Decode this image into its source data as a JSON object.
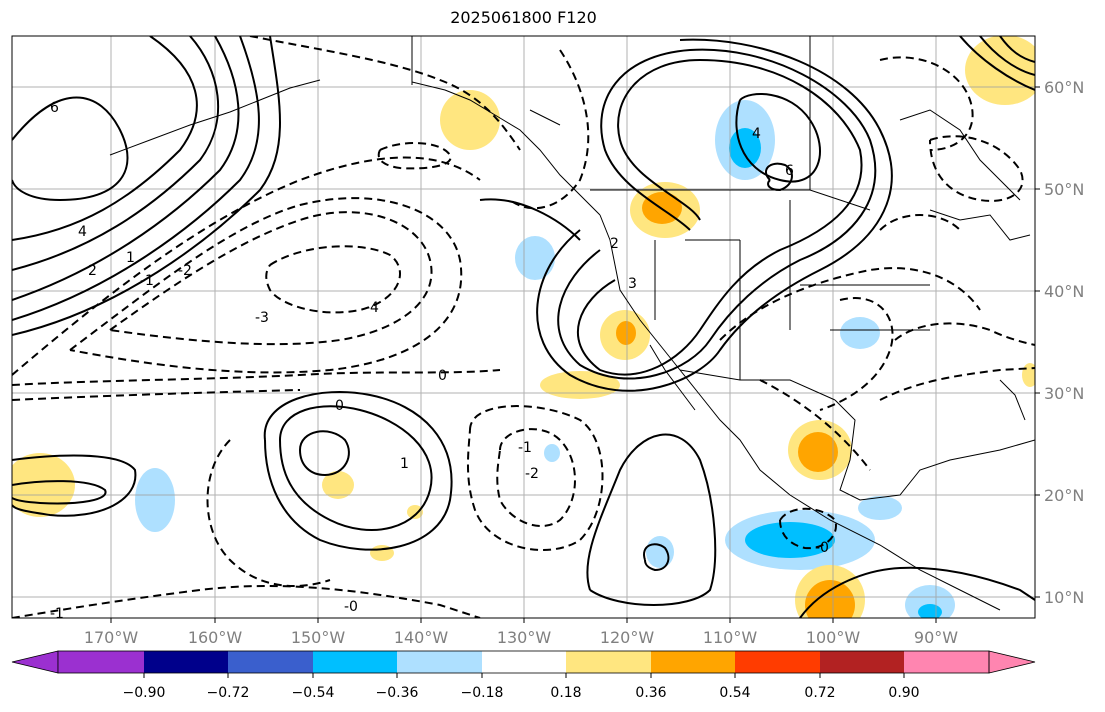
{
  "title": "2025061800 F120",
  "map": {
    "lon_ticks": [
      "170°W",
      "160°W",
      "150°W",
      "140°W",
      "130°W",
      "120°W",
      "110°W",
      "100°W",
      "90°W"
    ],
    "lat_ticks": [
      "60°N",
      "50°N",
      "40°N",
      "30°N",
      "20°N",
      "10°N"
    ],
    "gridlines": true,
    "contour_labels": [
      "6",
      "4",
      "2",
      "1",
      "-1",
      "-2",
      "-3",
      "-4",
      "0",
      "-0",
      "3",
      "6",
      "4",
      "2",
      "1",
      "-1",
      "-2",
      "0",
      "-0",
      "-1"
    ]
  },
  "colorbar": {
    "ticks": [
      "−0.90",
      "−0.72",
      "−0.54",
      "−0.36",
      "−0.18",
      "0.18",
      "0.36",
      "0.54",
      "0.72",
      "0.90"
    ],
    "colors": [
      "#9b30d0",
      "#00008b",
      "#3a5fcd",
      "#00bfff",
      "#aee0ff",
      "#ffffff",
      "#ffe680",
      "#ffa500",
      "#ff3c00",
      "#b22222",
      "#ff85b0"
    ]
  }
}
